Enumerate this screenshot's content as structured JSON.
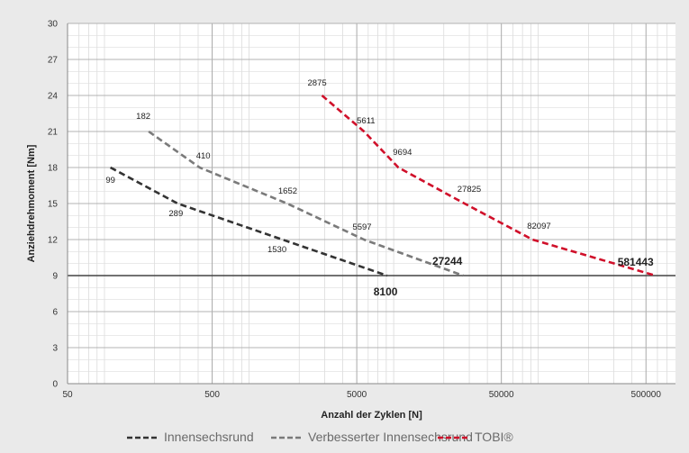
{
  "chart_data": {
    "type": "line",
    "xscale": "log",
    "xlabel": "Anzahl der Zyklen [N]",
    "ylabel": "Anziehdrehmoment [Nm]",
    "xlim": [
      50,
      800000
    ],
    "ylim": [
      0,
      30
    ],
    "x_ticks": [
      50,
      500,
      5000,
      50000,
      500000
    ],
    "y_ticks": [
      0,
      3,
      6,
      9,
      12,
      15,
      18,
      21,
      24,
      27,
      30
    ],
    "x_tick_labels": [
      "50",
      "500",
      "5000",
      "50000",
      "500000"
    ],
    "y_tick_labels": [
      "0",
      "3",
      "6",
      "9",
      "12",
      "15",
      "18",
      "21",
      "24",
      "27",
      "30"
    ],
    "grid": true,
    "reference_line_y": 9,
    "legend_position": "bottom",
    "series": [
      {
        "name": "Innensechsrund",
        "color": "#333333",
        "x": [
          99,
          289,
          1530,
          8100
        ],
        "y": [
          18,
          15,
          12,
          9
        ],
        "point_labels": [
          "99",
          "289",
          "1530",
          "8100"
        ]
      },
      {
        "name": "Verbesserter Innensechsrund",
        "color": "#7a7a7a",
        "x": [
          182,
          410,
          1652,
          5597,
          27244
        ],
        "y": [
          21,
          18,
          15,
          12,
          9
        ],
        "point_labels": [
          "182",
          "410",
          "1652",
          "5597",
          "27244"
        ]
      },
      {
        "name": "TOBI®",
        "color": "#d0102a",
        "x": [
          2875,
          5611,
          9694,
          27825,
          82097,
          581443
        ],
        "y": [
          24,
          21,
          18,
          15,
          12,
          9
        ],
        "point_labels": [
          "2875",
          "5611",
          "9694",
          "27825",
          "82097",
          "581443"
        ]
      }
    ]
  }
}
